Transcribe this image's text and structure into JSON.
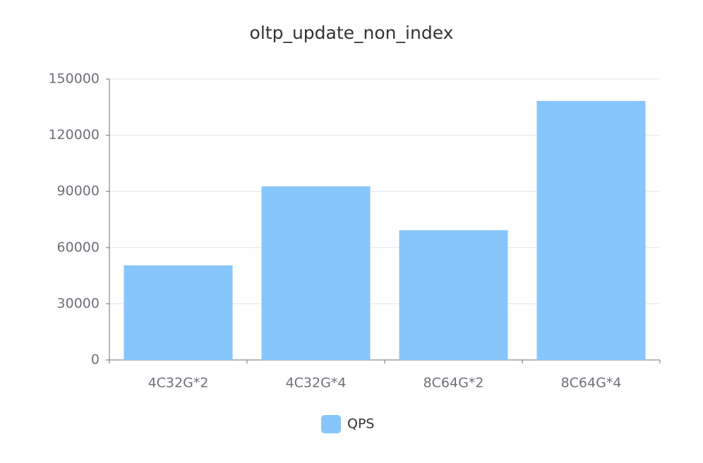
{
  "chart_data": {
    "type": "bar",
    "title": "oltp_update_non_index",
    "categories": [
      "4C32G*2",
      "4C32G*4",
      "8C64G*2",
      "8C64G*4"
    ],
    "series": [
      {
        "name": "QPS",
        "color": "#87c6fb",
        "values": [
          50500,
          92700,
          69300,
          138300
        ]
      }
    ],
    "ylim": [
      0,
      150000
    ],
    "yticks": [
      0,
      30000,
      60000,
      90000,
      120000,
      150000
    ],
    "grid": true,
    "legend": "bottom"
  }
}
